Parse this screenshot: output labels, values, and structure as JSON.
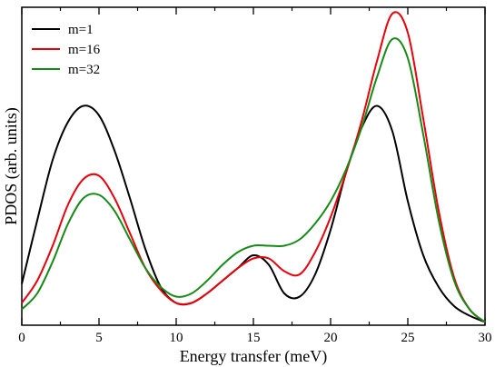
{
  "chart_data": {
    "type": "line",
    "title": "",
    "xlabel": "Energy transfer (meV)",
    "ylabel": "PDOS (arb. units)",
    "xlim": [
      0,
      30
    ],
    "ylim": [
      0,
      1.0
    ],
    "x_ticks": [
      0,
      5,
      10,
      15,
      20,
      25,
      30
    ],
    "x_tick_labels": [
      "0",
      "5",
      "10",
      "15",
      "20",
      "25",
      "30"
    ],
    "y_tick_labels_shown": false,
    "grid": false,
    "legend_position": "top-left",
    "x": [
      0,
      1,
      2,
      3,
      4,
      5,
      6,
      7,
      8,
      9,
      10,
      11,
      12,
      13,
      14,
      15,
      16,
      17,
      18,
      19,
      20,
      21,
      22,
      23,
      24,
      25,
      26,
      27,
      28,
      29,
      30
    ],
    "series": [
      {
        "name": "m=1",
        "color": "#000000",
        "values": [
          0.13,
          0.33,
          0.52,
          0.64,
          0.69,
          0.66,
          0.55,
          0.4,
          0.24,
          0.12,
          0.07,
          0.07,
          0.1,
          0.14,
          0.18,
          0.22,
          0.19,
          0.1,
          0.09,
          0.16,
          0.3,
          0.48,
          0.62,
          0.69,
          0.61,
          0.39,
          0.22,
          0.12,
          0.06,
          0.03,
          0.01
        ]
      },
      {
        "name": "m=16",
        "color": "#e8000b",
        "values": [
          0.07,
          0.14,
          0.25,
          0.38,
          0.46,
          0.47,
          0.4,
          0.29,
          0.18,
          0.11,
          0.07,
          0.07,
          0.1,
          0.14,
          0.18,
          0.21,
          0.21,
          0.17,
          0.16,
          0.23,
          0.34,
          0.48,
          0.64,
          0.83,
          0.98,
          0.92,
          0.65,
          0.36,
          0.15,
          0.05,
          0.01
        ]
      },
      {
        "name": "m=32",
        "color": "#168a16",
        "values": [
          0.05,
          0.1,
          0.2,
          0.32,
          0.4,
          0.41,
          0.36,
          0.27,
          0.18,
          0.12,
          0.09,
          0.1,
          0.14,
          0.19,
          0.23,
          0.25,
          0.25,
          0.25,
          0.27,
          0.32,
          0.39,
          0.49,
          0.62,
          0.78,
          0.9,
          0.84,
          0.6,
          0.33,
          0.14,
          0.05,
          0.01
        ]
      }
    ]
  }
}
